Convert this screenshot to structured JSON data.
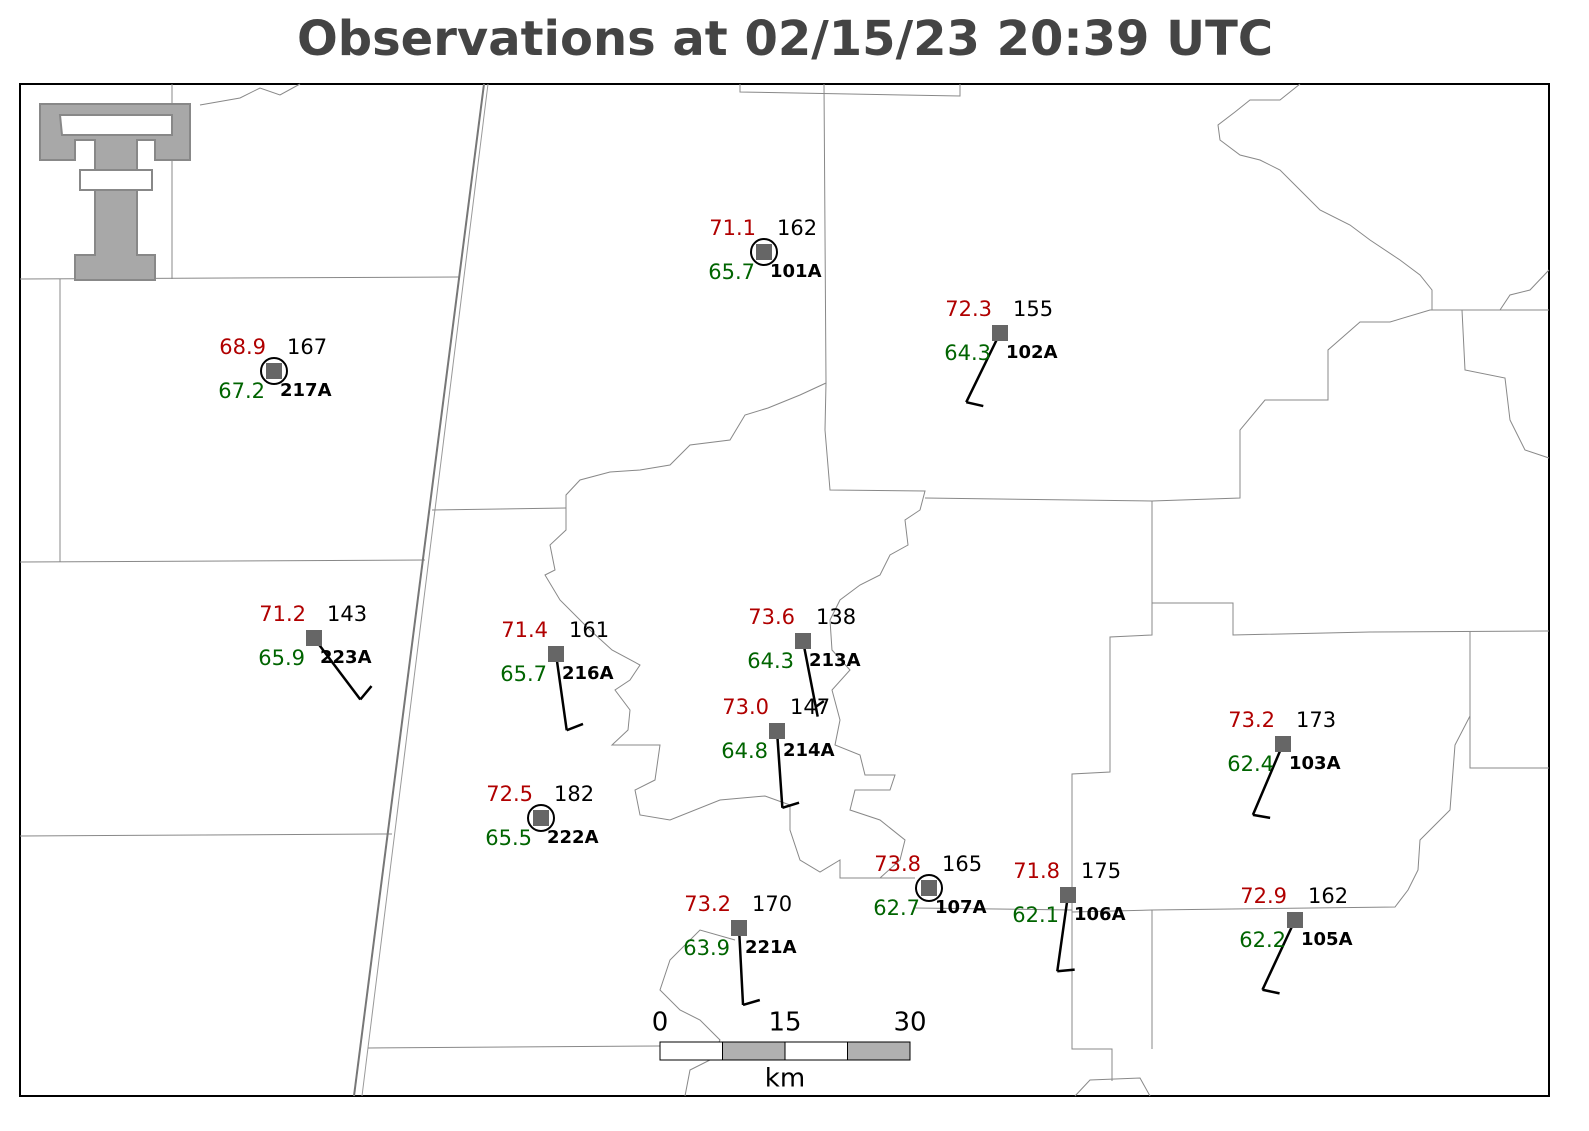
{
  "title": "Observations at 02/15/23 20:39 UTC",
  "stations": [
    {
      "id": "101A",
      "temperature": 71.1,
      "pressure": 162,
      "dewpoint": 65.7,
      "wind_direction": null,
      "wind_speed": 0
    },
    {
      "id": "102A",
      "temperature": 72.3,
      "pressure": 155,
      "dewpoint": 64.3,
      "wind_direction": 206,
      "wind_speed": 10
    },
    {
      "id": "217A",
      "temperature": 68.9,
      "pressure": 167,
      "dewpoint": 67.2,
      "wind_direction": null,
      "wind_speed": 0
    },
    {
      "id": "223A",
      "temperature": 71.2,
      "pressure": 143,
      "dewpoint": 65.9,
      "wind_direction": 143,
      "wind_speed": 10
    },
    {
      "id": "216A",
      "temperature": 71.4,
      "pressure": 161,
      "dewpoint": 65.7,
      "wind_direction": 172,
      "wind_speed": 10
    },
    {
      "id": "213A",
      "temperature": 73.6,
      "pressure": 138,
      "dewpoint": 64.3,
      "wind_direction": 169,
      "wind_speed": 5
    },
    {
      "id": "214A",
      "temperature": 73.0,
      "pressure": 147,
      "dewpoint": 64.8,
      "wind_direction": 176,
      "wind_speed": 10
    },
    {
      "id": "222A",
      "temperature": 72.5,
      "pressure": 182,
      "dewpoint": 65.5,
      "wind_direction": null,
      "wind_speed": 0
    },
    {
      "id": "221A",
      "temperature": 73.2,
      "pressure": 170,
      "dewpoint": 63.9,
      "wind_direction": 177,
      "wind_speed": 10
    },
    {
      "id": "107A",
      "temperature": 73.8,
      "pressure": 165,
      "dewpoint": 62.7,
      "wind_direction": null,
      "wind_speed": 0
    },
    {
      "id": "106A",
      "temperature": 71.8,
      "pressure": 175,
      "dewpoint": 62.1,
      "wind_direction": 188,
      "wind_speed": 10
    },
    {
      "id": "103A",
      "temperature": 73.2,
      "pressure": 173,
      "dewpoint": 62.4,
      "wind_direction": 203,
      "wind_speed": 10
    },
    {
      "id": "105A",
      "temperature": 72.9,
      "pressure": 162,
      "dewpoint": 62.2,
      "wind_direction": 205,
      "wind_speed": 10
    }
  ],
  "scale_bar": {
    "labels": [
      0,
      15,
      30
    ],
    "unit": "km"
  }
}
